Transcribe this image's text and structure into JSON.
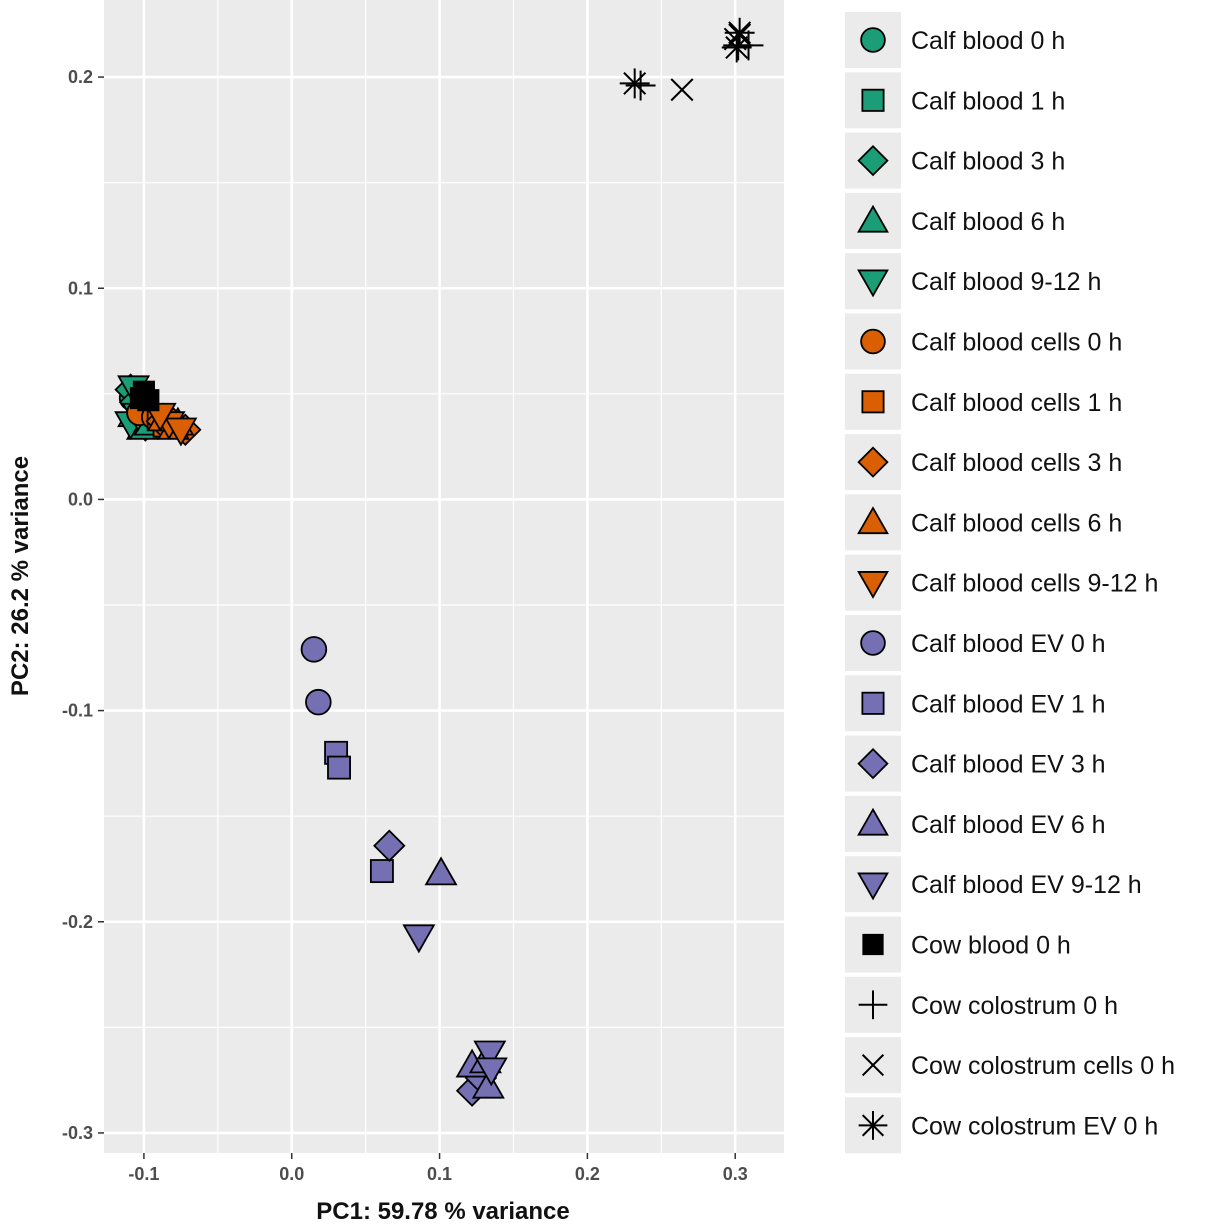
{
  "chart_data": {
    "type": "scatter",
    "xlabel": "PC1: 59.78 % variance",
    "ylabel": "PC2: 26.2 % variance",
    "xlim": [
      -0.127,
      0.333
    ],
    "ylim": [
      -0.3095,
      0.2365
    ],
    "x_ticks": [
      {
        "value": -0.1,
        "label": "-0.1"
      },
      {
        "value": 0.0,
        "label": "0.0"
      },
      {
        "value": 0.1,
        "label": "0.1"
      },
      {
        "value": 0.2,
        "label": "0.2"
      },
      {
        "value": 0.3,
        "label": "0.3"
      }
    ],
    "y_ticks": [
      {
        "value": -0.3,
        "label": "-0.3"
      },
      {
        "value": -0.2,
        "label": "-0.2"
      },
      {
        "value": -0.1,
        "label": "-0.1"
      },
      {
        "value": 0.0,
        "label": "0.0"
      },
      {
        "value": 0.1,
        "label": "0.1"
      },
      {
        "value": 0.2,
        "label": "0.2"
      }
    ],
    "grid": true,
    "legend_position": "right",
    "series": [
      {
        "name": "Calf blood 0 h",
        "shape": "circle",
        "color": "#1B9E77",
        "points": [
          [
            -0.108,
            0.048
          ],
          [
            -0.105,
            0.036
          ],
          [
            -0.1,
            0.042
          ]
        ]
      },
      {
        "name": "Calf blood 1 h",
        "shape": "square",
        "color": "#1B9E77",
        "points": [
          [
            -0.104,
            0.044
          ],
          [
            -0.098,
            0.038
          ],
          [
            -0.103,
            0.05
          ]
        ]
      },
      {
        "name": "Calf blood 3 h",
        "shape": "diamond",
        "color": "#1B9E77",
        "points": [
          [
            -0.109,
            0.052
          ],
          [
            -0.106,
            0.046
          ],
          [
            -0.099,
            0.035
          ]
        ]
      },
      {
        "name": "Calf blood 6 h",
        "shape": "triangle-up",
        "color": "#1B9E77",
        "points": [
          [
            -0.107,
            0.04
          ],
          [
            -0.101,
            0.034
          ],
          [
            -0.096,
            0.036
          ]
        ]
      },
      {
        "name": "Calf blood 9-12 h",
        "shape": "triangle-down",
        "color": "#1B9E77",
        "points": [
          [
            -0.109,
            0.036
          ],
          [
            -0.104,
            0.04
          ],
          [
            -0.107,
            0.053
          ]
        ]
      },
      {
        "name": "Calf blood cells 0 h",
        "shape": "circle",
        "color": "#D95F02",
        "points": [
          [
            -0.103,
            0.041
          ],
          [
            -0.093,
            0.039
          ]
        ]
      },
      {
        "name": "Calf blood cells 1 h",
        "shape": "square",
        "color": "#D95F02",
        "points": [
          [
            -0.09,
            0.038
          ],
          [
            -0.086,
            0.035
          ]
        ]
      },
      {
        "name": "Calf blood cells 3 h",
        "shape": "diamond",
        "color": "#D95F02",
        "points": [
          [
            -0.072,
            0.033
          ],
          [
            -0.08,
            0.036
          ],
          [
            -0.088,
            0.037
          ]
        ]
      },
      {
        "name": "Calf blood cells 6 h",
        "shape": "triangle-up",
        "color": "#D95F02",
        "points": [
          [
            -0.077,
            0.036
          ],
          [
            -0.087,
            0.038
          ],
          [
            -0.08,
            0.034
          ]
        ]
      },
      {
        "name": "Calf blood cells 9-12 h",
        "shape": "triangle-down",
        "color": "#D95F02",
        "points": [
          [
            -0.083,
            0.036
          ],
          [
            -0.075,
            0.033
          ],
          [
            -0.089,
            0.04
          ]
        ]
      },
      {
        "name": "Calf blood EV 0 h",
        "shape": "circle",
        "color": "#7570B3",
        "points": [
          [
            0.015,
            -0.071
          ],
          [
            0.018,
            -0.096
          ]
        ]
      },
      {
        "name": "Calf blood EV 1 h",
        "shape": "square",
        "color": "#7570B3",
        "points": [
          [
            0.03,
            -0.12
          ],
          [
            0.032,
            -0.127
          ],
          [
            0.061,
            -0.176
          ]
        ]
      },
      {
        "name": "Calf blood EV 3 h",
        "shape": "diamond",
        "color": "#7570B3",
        "points": [
          [
            0.066,
            -0.164
          ],
          [
            0.122,
            -0.28
          ],
          [
            0.128,
            -0.274
          ]
        ]
      },
      {
        "name": "Calf blood EV 6 h",
        "shape": "triangle-up",
        "color": "#7570B3",
        "points": [
          [
            0.101,
            -0.177
          ],
          [
            0.122,
            -0.268
          ],
          [
            0.131,
            -0.266
          ],
          [
            0.133,
            -0.278
          ]
        ]
      },
      {
        "name": "Calf blood EV 9-12 h",
        "shape": "triangle-down",
        "color": "#7570B3",
        "points": [
          [
            0.086,
            -0.207
          ],
          [
            0.134,
            -0.262
          ],
          [
            0.135,
            -0.27
          ]
        ]
      },
      {
        "name": "Cow blood 0 h",
        "shape": "square-filled",
        "color": "#000000",
        "points": [
          [
            -0.1,
            0.051
          ],
          [
            -0.097,
            0.047
          ],
          [
            -0.102,
            0.048
          ]
        ]
      },
      {
        "name": "Cow colostrum 0 h",
        "shape": "plus",
        "color": "#000000",
        "points": [
          [
            0.236,
            0.196
          ],
          [
            0.302,
            0.215
          ],
          [
            0.309,
            0.215
          ]
        ]
      },
      {
        "name": "Cow colostrum cells 0 h",
        "shape": "cross",
        "color": "#000000",
        "points": [
          [
            0.264,
            0.194
          ],
          [
            0.3,
            0.218
          ],
          [
            0.303,
            0.22
          ]
        ]
      },
      {
        "name": "Cow colostrum EV 0 h",
        "shape": "asterisk",
        "color": "#000000",
        "points": [
          [
            0.232,
            0.197
          ],
          [
            0.301,
            0.214
          ],
          [
            0.303,
            0.221
          ]
        ]
      }
    ]
  }
}
